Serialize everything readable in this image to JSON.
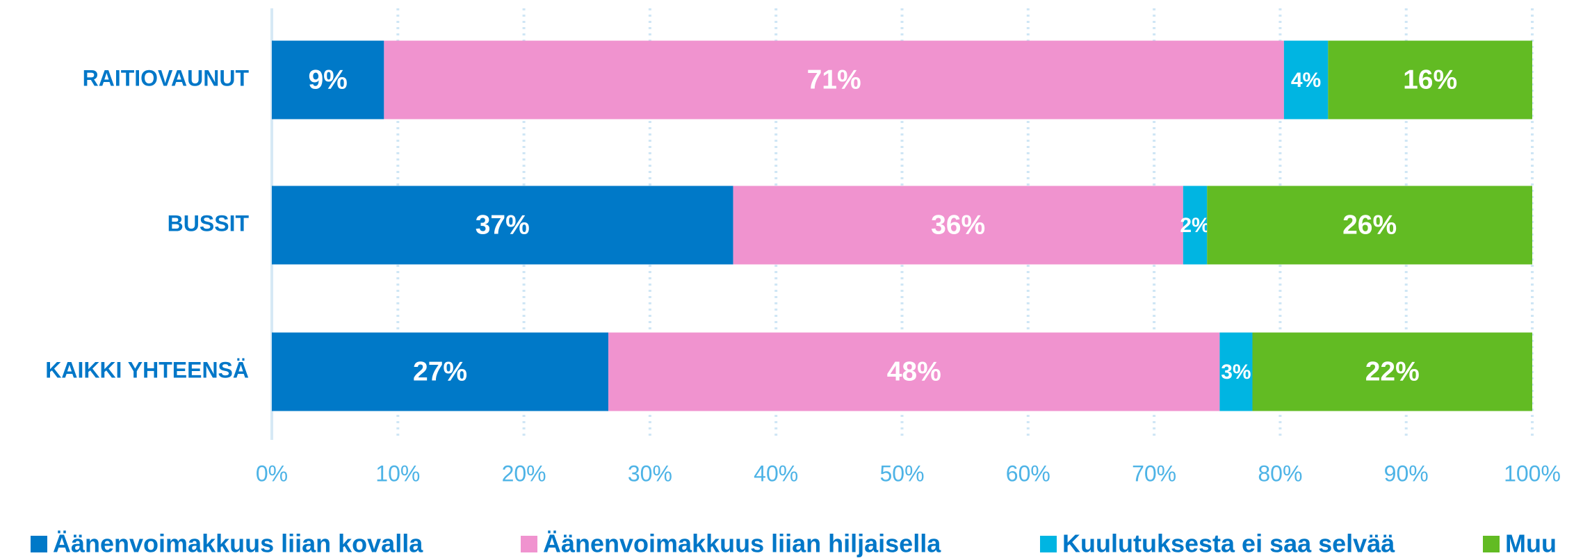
{
  "chart_data": {
    "type": "stacked-bar-horizontal",
    "categories": [
      "RAITIOVAUNUT",
      "BUSSIT",
      "KAIKKI YHTEENSÄ"
    ],
    "series": [
      {
        "name": "Äänenvoimakkuus liian kovalla",
        "color": "#0079c8",
        "values": [
          8.9,
          36.6,
          26.7
        ],
        "value_labels": [
          "9%",
          "37%",
          "27%"
        ]
      },
      {
        "name": "Äänenvoimakkuus liian hiljaisella",
        "color": "#f093cf",
        "values": [
          71.4,
          35.7,
          48.5
        ],
        "value_labels": [
          "71%",
          "36%",
          "48%"
        ]
      },
      {
        "name": "Kuulutuksesta ei saa selvää",
        "color": "#00b5e2",
        "values": [
          3.5,
          1.9,
          2.6
        ],
        "value_labels": [
          "4%",
          "2%",
          "3%"
        ]
      },
      {
        "name": "Muu",
        "color": "#62bb23",
        "values": [
          16.2,
          25.8,
          22.2
        ],
        "value_labels": [
          "16%",
          "26%",
          "22%"
        ]
      }
    ],
    "xlim": [
      0,
      100
    ],
    "xticks": [
      {
        "value": 0,
        "label": "0%"
      },
      {
        "value": 10,
        "label": "10%"
      },
      {
        "value": 20,
        "label": "20%"
      },
      {
        "value": 30,
        "label": "30%"
      },
      {
        "value": 40,
        "label": "40%"
      },
      {
        "value": 50,
        "label": "50%"
      },
      {
        "value": 60,
        "label": "60%"
      },
      {
        "value": 70,
        "label": "70%"
      },
      {
        "value": 80,
        "label": "80%"
      },
      {
        "value": 90,
        "label": "90%"
      },
      {
        "value": 100,
        "label": "100%"
      }
    ],
    "grid": true,
    "legend": "bottom"
  }
}
